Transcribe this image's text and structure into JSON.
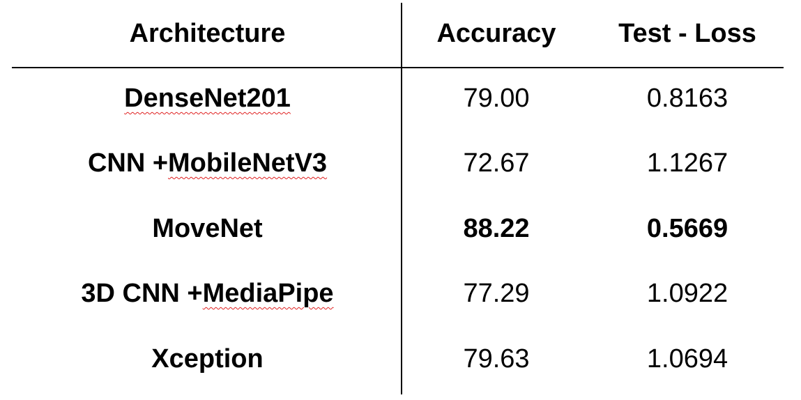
{
  "table": {
    "headers": {
      "architecture": "Architecture",
      "accuracy": "Accuracy",
      "test_loss": "Test - Loss"
    },
    "rows": [
      {
        "architecture_prefix": "",
        "architecture_flagged": "DenseNet201",
        "accuracy": "79.00",
        "test_loss": "0.8163",
        "highlight": false
      },
      {
        "architecture_prefix": "CNN + ",
        "architecture_flagged": "MobileNetV3",
        "accuracy": "72.67",
        "test_loss": "1.1267",
        "highlight": false
      },
      {
        "architecture_prefix": "MoveNet",
        "architecture_flagged": "",
        "accuracy": "88.22",
        "test_loss": "0.5669",
        "highlight": true
      },
      {
        "architecture_prefix": "3D CNN + ",
        "architecture_flagged": "MediaPipe",
        "accuracy": "77.29",
        "test_loss": "1.0922",
        "highlight": false
      },
      {
        "architecture_prefix": "Xception",
        "architecture_flagged": "",
        "accuracy": "79.63",
        "test_loss": "1.0694",
        "highlight": false
      }
    ]
  },
  "colors": {
    "text": "#000000",
    "rule": "#000000",
    "spellcheck_underline": "#e02020"
  }
}
